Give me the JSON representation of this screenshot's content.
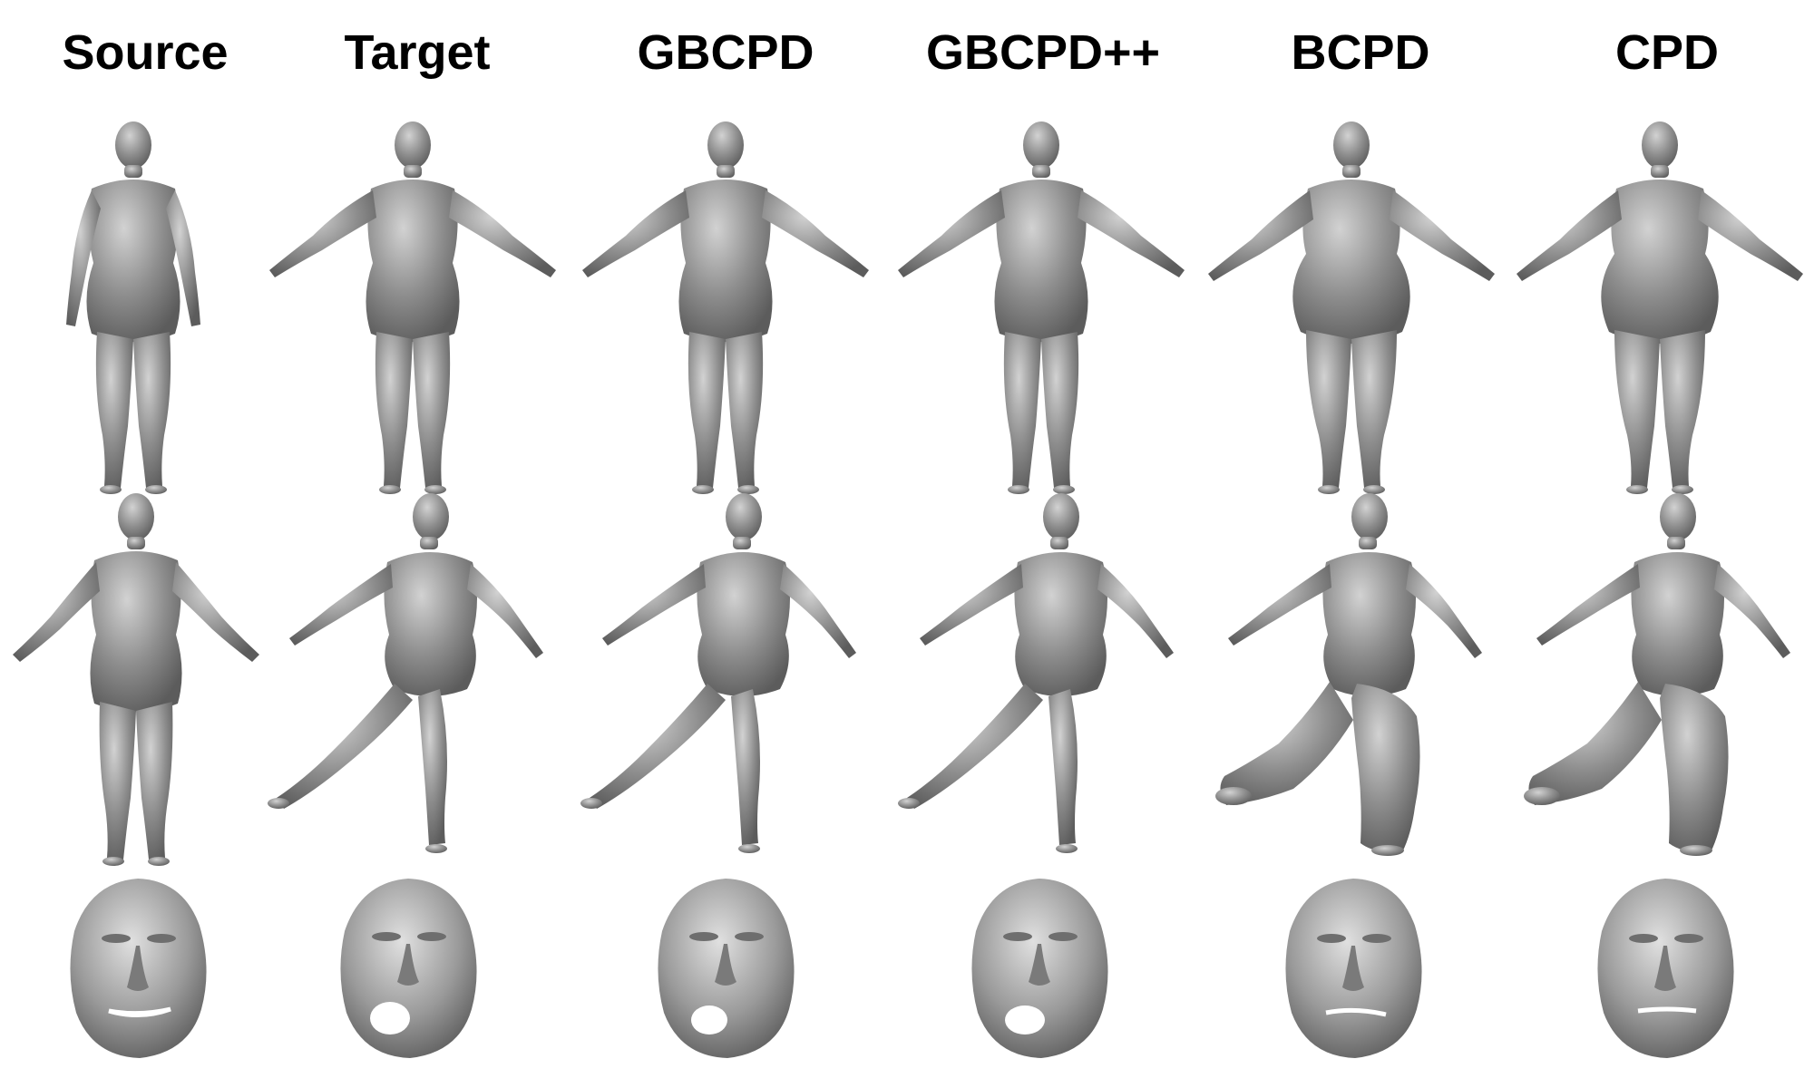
{
  "figure": {
    "columns": [
      "Source",
      "Target",
      "GBCPD",
      "GBCPD++",
      "BCPD",
      "CPD"
    ],
    "rows": [
      {
        "subject": "body-a-pose",
        "poses": [
          "arms-down",
          "t-pose",
          "t-pose",
          "t-pose",
          "t-pose-wide-hips",
          "t-pose-wide-hips"
        ]
      },
      {
        "subject": "body-leg-raise",
        "poses": [
          "t-pose",
          "leg-raise",
          "leg-raise",
          "leg-raise",
          "leg-raise-baggy",
          "leg-raise-baggy"
        ]
      },
      {
        "subject": "face",
        "poses": [
          "smile",
          "open-mouth",
          "open-mouth-rough",
          "open-mouth",
          "grimace",
          "closed-mouth"
        ]
      }
    ],
    "colors": {
      "mesh": "#8a8a8a",
      "mesh_light": "#c4c4c4",
      "mesh_dark": "#5a5a5a",
      "background": "#ffffff",
      "title": "#000000"
    }
  }
}
